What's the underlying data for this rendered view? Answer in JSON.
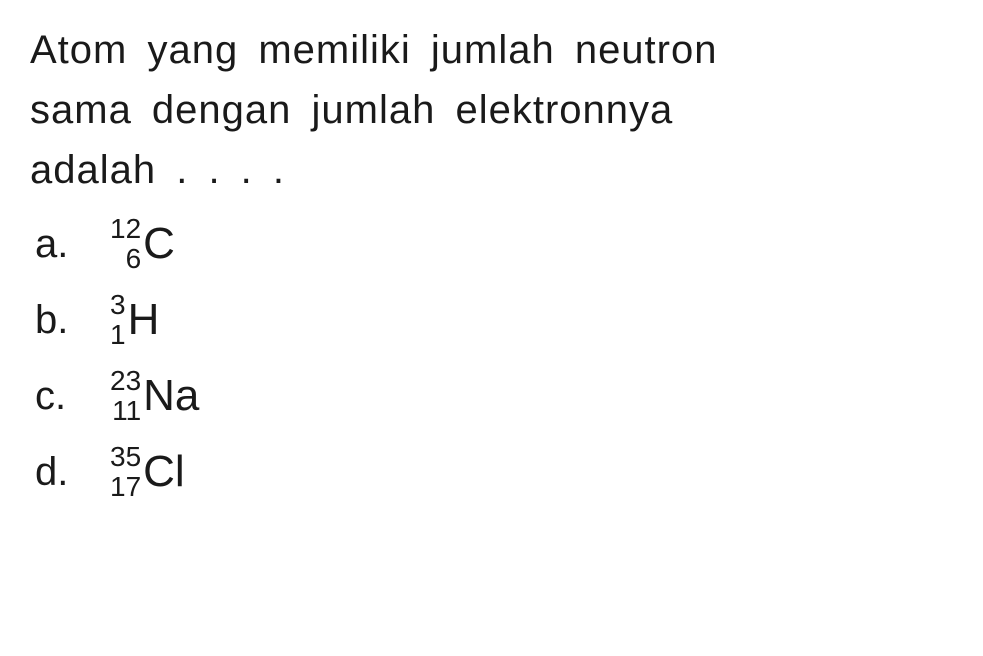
{
  "question": {
    "line1": "Atom yang memiliki jumlah neutron",
    "line2": "sama dengan jumlah elektronnya",
    "line3": "adalah . . . ."
  },
  "options": [
    {
      "letter": "a.",
      "mass_number": "12",
      "atomic_number": "6",
      "element": "C"
    },
    {
      "letter": "b.",
      "mass_number": "3",
      "atomic_number": "1",
      "element": "H"
    },
    {
      "letter": "c.",
      "mass_number": "23",
      "atomic_number": "11",
      "element": "Na"
    },
    {
      "letter": "d.",
      "mass_number": "35",
      "atomic_number": "17",
      "element": "Cl"
    }
  ],
  "styling": {
    "background_color": "#ffffff",
    "text_color": "#1a1a1a",
    "question_fontsize": 40,
    "option_fontsize": 40,
    "superscript_fontsize": 28,
    "element_fontsize": 44,
    "font_family": "Arial"
  }
}
